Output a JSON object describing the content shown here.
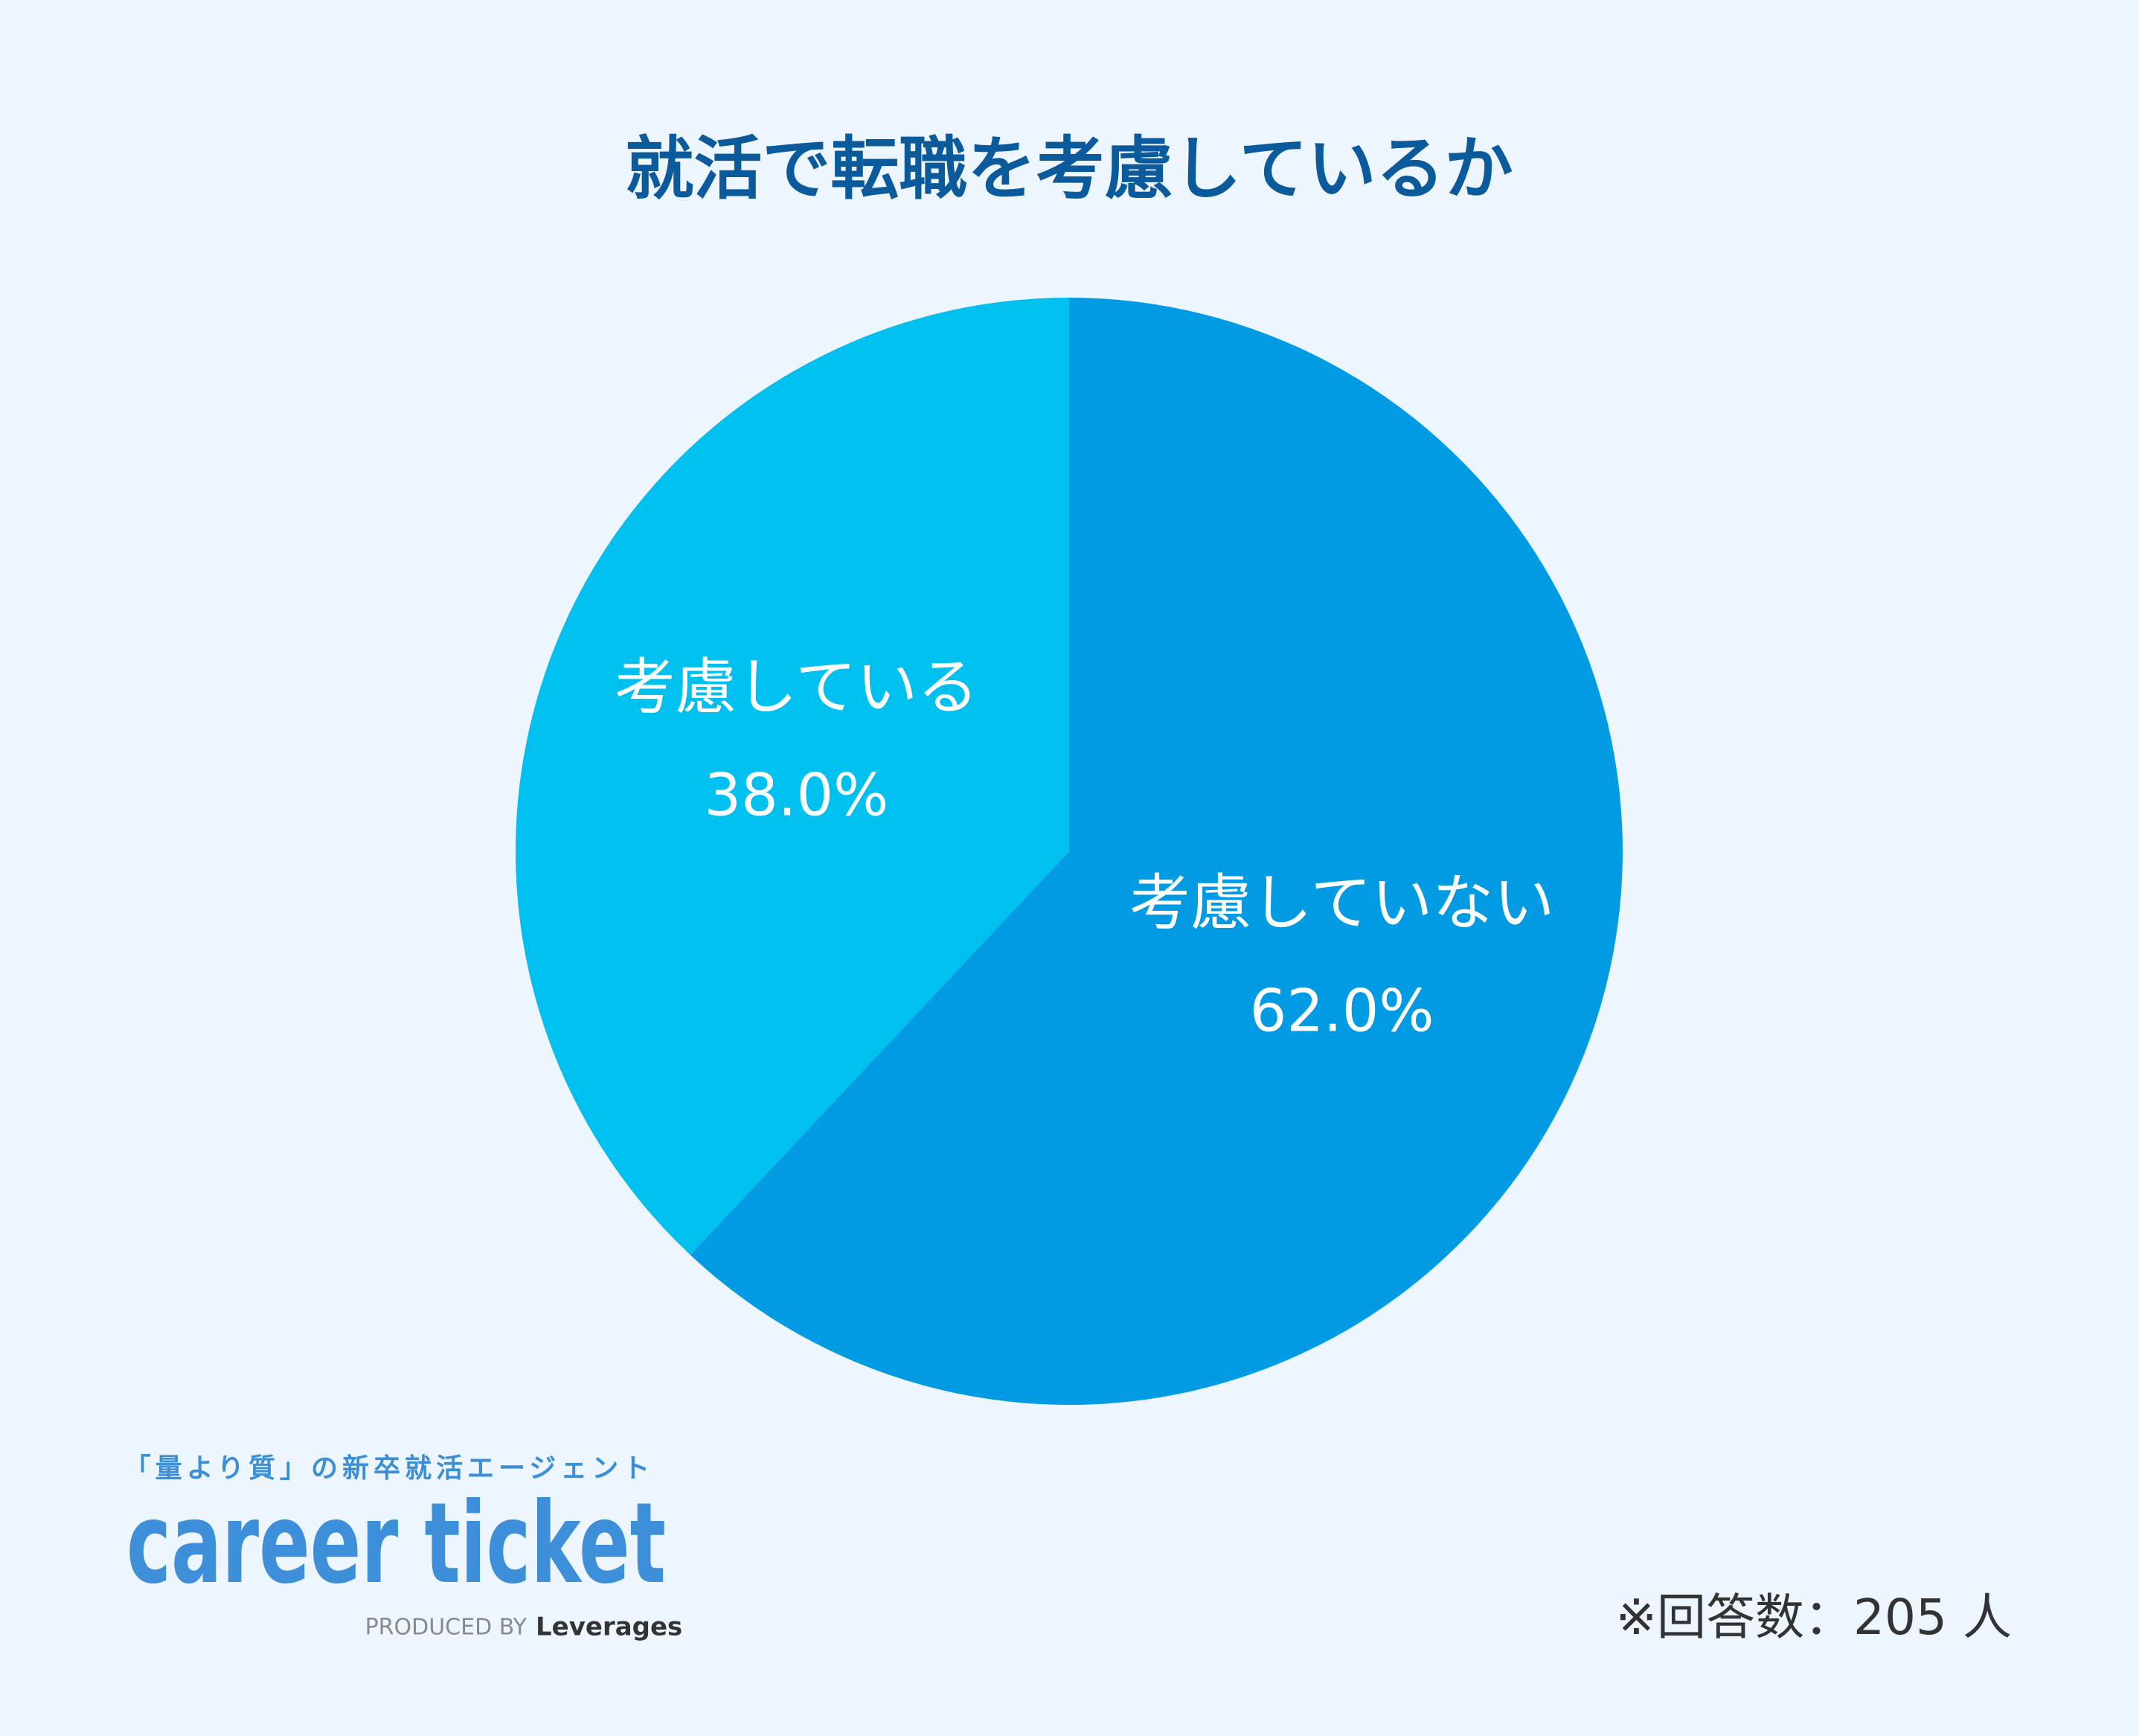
{
  "chart_data": {
    "type": "pie",
    "title": "就活で転職を考慮しているか",
    "categories": [
      "考慮していない",
      "考慮している"
    ],
    "values": [
      62.0,
      38.0
    ],
    "value_labels": [
      "62.0%",
      "38.0%"
    ],
    "colors": [
      "#009be3",
      "#00c0f0"
    ]
  },
  "footer": {
    "tagline": "「量より質」の新卒就活エージェント",
    "logo": "career ticket",
    "produced_by": "PRODUCED BY",
    "company": "Leverages",
    "note": "※回答数：205 人"
  }
}
